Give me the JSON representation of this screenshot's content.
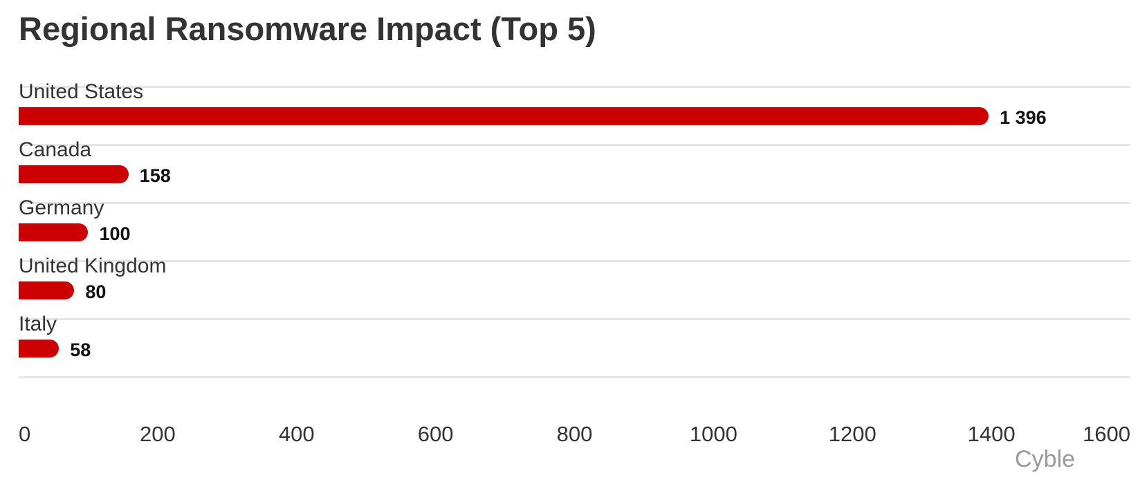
{
  "chart": {
    "title": "Regional Ransomware Impact (Top 5)",
    "credit": "Cyble",
    "bar_color": "#cc0000"
  },
  "chart_data": {
    "type": "bar",
    "orientation": "horizontal",
    "title": "Regional Ransomware Impact (Top 5)",
    "categories": [
      "United States",
      "Canada",
      "Germany",
      "United Kingdom",
      "Italy"
    ],
    "values": [
      1396,
      158,
      100,
      80,
      58
    ],
    "value_labels": [
      "1 396",
      "158",
      "100",
      "80",
      "58"
    ],
    "xlabel": "",
    "ylabel": "",
    "xlim": [
      0,
      1600
    ],
    "x_ticks": [
      "0",
      "200",
      "400",
      "600",
      "800",
      "1000",
      "1200",
      "1400",
      "1600"
    ],
    "grid": true,
    "legend": null,
    "credit": "Cyble",
    "color": "#cc0000"
  }
}
